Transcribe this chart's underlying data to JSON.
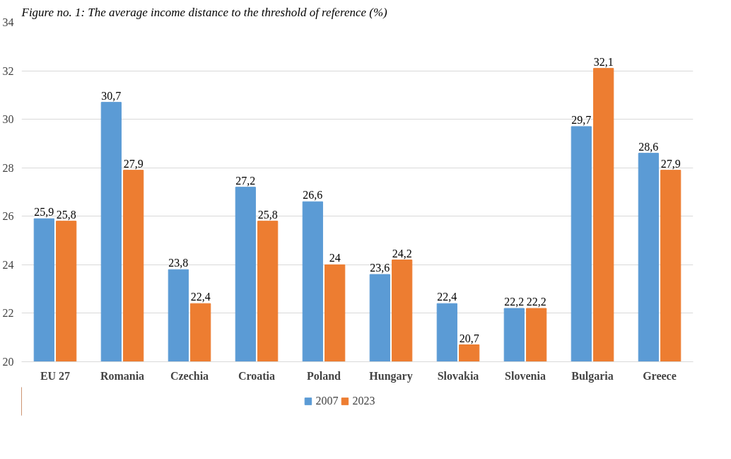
{
  "chart_data": {
    "type": "bar",
    "title": "Figure no. 1: The average income distance to the threshold of reference (%)",
    "categories": [
      "EU 27",
      "Romania",
      "Czechia",
      "Croatia",
      "Poland",
      "Hungary",
      "Slovakia",
      "Slovenia",
      "Bulgaria",
      "Greece"
    ],
    "series": [
      {
        "name": "2007",
        "color": "#5b9bd5",
        "values": [
          25.9,
          30.7,
          23.8,
          27.2,
          26.6,
          23.6,
          22.4,
          22.2,
          29.7,
          28.6
        ],
        "value_labels": [
          "25,9",
          "30,7",
          "23,8",
          "27,2",
          "26,6",
          "23,6",
          "22,4",
          "22,2",
          "29,7",
          "28,6"
        ]
      },
      {
        "name": "2023",
        "color": "#ed7d31",
        "values": [
          25.8,
          27.9,
          22.4,
          25.8,
          24,
          24.2,
          20.7,
          22.2,
          32.1,
          27.9
        ],
        "value_labels": [
          "25,8",
          "27,9",
          "22,4",
          "25,8",
          "24",
          "24,2",
          "20,7",
          "22,2",
          "32,1",
          "27,9"
        ]
      }
    ],
    "ylim": [
      20,
      34
    ],
    "yticks": [
      20,
      22,
      24,
      26,
      28,
      30,
      32,
      34
    ],
    "grid": "y",
    "legend": "bottom"
  }
}
